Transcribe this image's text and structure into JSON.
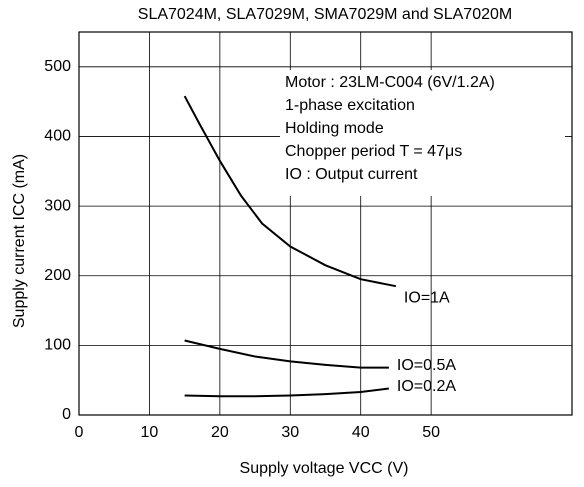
{
  "chart_data": {
    "type": "line",
    "title": "SLA7024M, SLA7029M, SMA7029M and SLA7020M",
    "x_label": "Supply voltage VCC (V)",
    "y_label": "Supply current ICC (mA)",
    "annotation": [
      "Motor : 23LM-C004 (6V/1.2A)",
      "1-phase excitation",
      "Holding mode",
      "Chopper period T = 47μs",
      "IO : Output current"
    ],
    "xlim": [
      0,
      70
    ],
    "xticks": [
      0,
      10,
      20,
      30,
      40,
      50
    ],
    "ylim": [
      0,
      550
    ],
    "yticks": [
      0,
      100,
      200,
      300,
      400,
      500
    ],
    "grid": true,
    "series": [
      {
        "name": "IO=1A",
        "color": "#000000",
        "x": [
          15,
          17,
          20,
          23,
          26,
          30,
          35,
          40,
          45
        ],
        "values": [
          458,
          420,
          365,
          315,
          275,
          242,
          215,
          195,
          185
        ]
      },
      {
        "name": "IO=0.5A",
        "color": "#000000",
        "x": [
          15,
          20,
          25,
          30,
          35,
          40,
          44
        ],
        "values": [
          107,
          95,
          84,
          77,
          72,
          68,
          68
        ]
      },
      {
        "name": "IO=0.2A",
        "color": "#000000",
        "x": [
          15,
          20,
          25,
          30,
          35,
          40,
          44
        ],
        "values": [
          28,
          27,
          27,
          28,
          30,
          33,
          38
        ]
      }
    ]
  }
}
